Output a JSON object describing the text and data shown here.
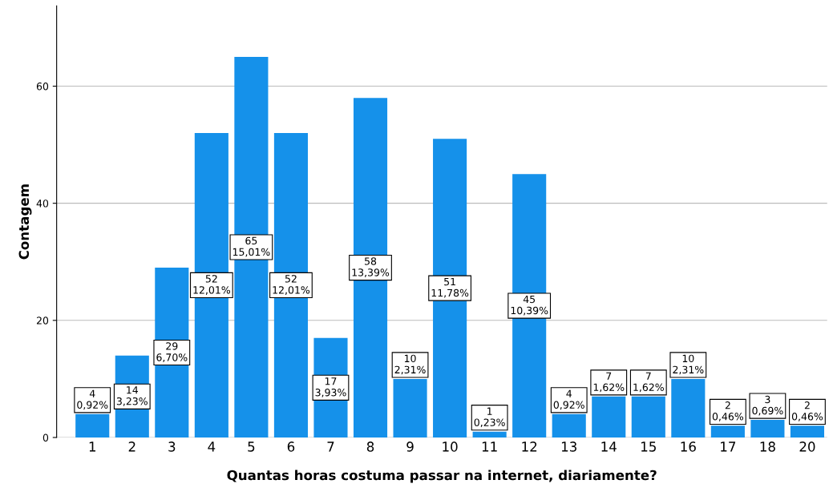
{
  "chart_data": {
    "type": "bar",
    "xlabel": "Quantas horas costuma passar na internet, diariamente?",
    "ylabel": "Contagem",
    "categories": [
      "1",
      "2",
      "3",
      "4",
      "5",
      "6",
      "7",
      "8",
      "9",
      "10",
      "11",
      "12",
      "13",
      "14",
      "15",
      "16",
      "17",
      "18",
      "20"
    ],
    "values": [
      4,
      14,
      29,
      52,
      65,
      52,
      17,
      58,
      10,
      51,
      1,
      45,
      4,
      7,
      7,
      10,
      2,
      3,
      2
    ],
    "value_labels": [
      "4\n0,92%",
      "14\n3,23%",
      "29\n6,70%",
      "52\n12,01%",
      "65\n15,01%",
      "52\n12,01%",
      "17\n3,93%",
      "58\n13,39%",
      "10\n2,31%",
      "51\n11,78%",
      "1\n0,23%",
      "45\n10,39%",
      "4\n0,92%",
      "7\n1,62%",
      "7\n1,62%",
      "10\n2,31%",
      "2\n0,46%",
      "3\n0,69%",
      "2\n0,46%"
    ],
    "color": "#1591ea",
    "ylim": [
      0,
      73.7
    ],
    "yticks": [
      0,
      20,
      40,
      60
    ],
    "grid": "y"
  }
}
